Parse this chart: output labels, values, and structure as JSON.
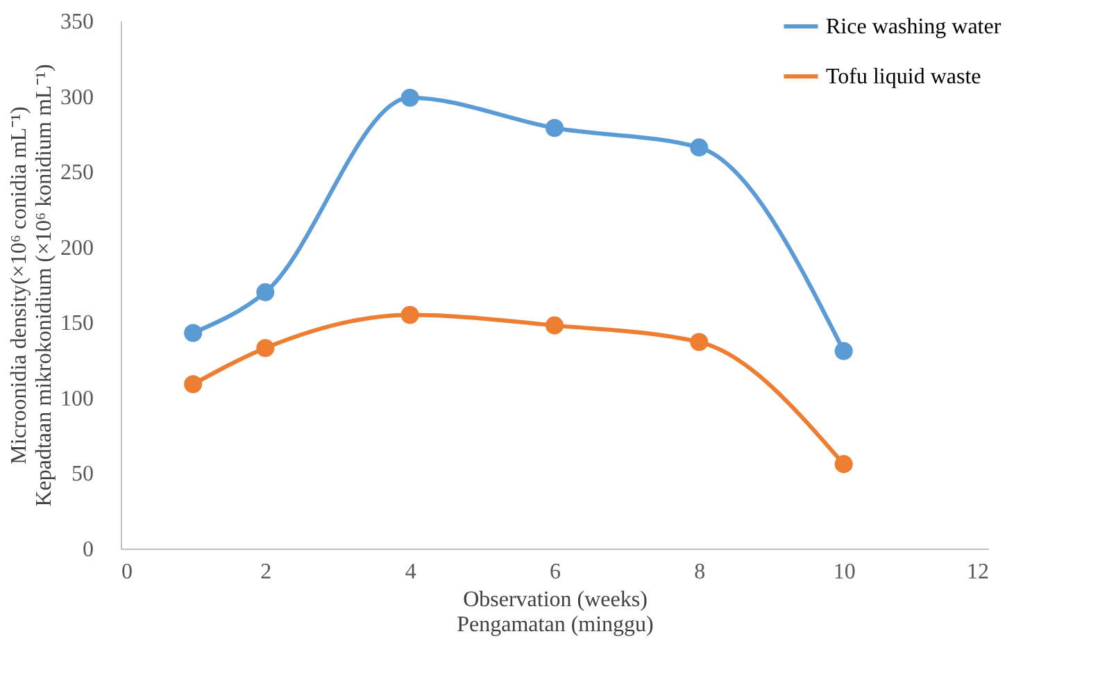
{
  "chart_data": {
    "type": "line",
    "xlabel": [
      "Observation (weeks)",
      "Pengamatan (minggu)"
    ],
    "ylabel": [
      "Microonidia  density(×10⁶ conidia mL⁻¹)",
      "Kepadtaan mikrokonidium (×10⁶ konidium mL⁻¹)"
    ],
    "x": [
      1,
      2,
      4,
      6,
      8,
      10
    ],
    "series": [
      {
        "name": "Rice washing water",
        "color": "#5b9bd5",
        "values": [
          143,
          170,
          299,
          279,
          266,
          131
        ]
      },
      {
        "name": "Tofu liquid waste",
        "color": "#ed7d31",
        "values": [
          109,
          133,
          155,
          148,
          137,
          56
        ]
      }
    ],
    "xlim": [
      0,
      12
    ],
    "xticks": [
      0,
      2,
      4,
      6,
      8,
      10,
      12
    ],
    "ylim": [
      0,
      350
    ],
    "yticks": [
      0,
      50,
      100,
      150,
      200,
      250,
      300,
      350
    ],
    "grid": false,
    "legend": "top right",
    "marker": "circle",
    "line_style": "solid"
  }
}
